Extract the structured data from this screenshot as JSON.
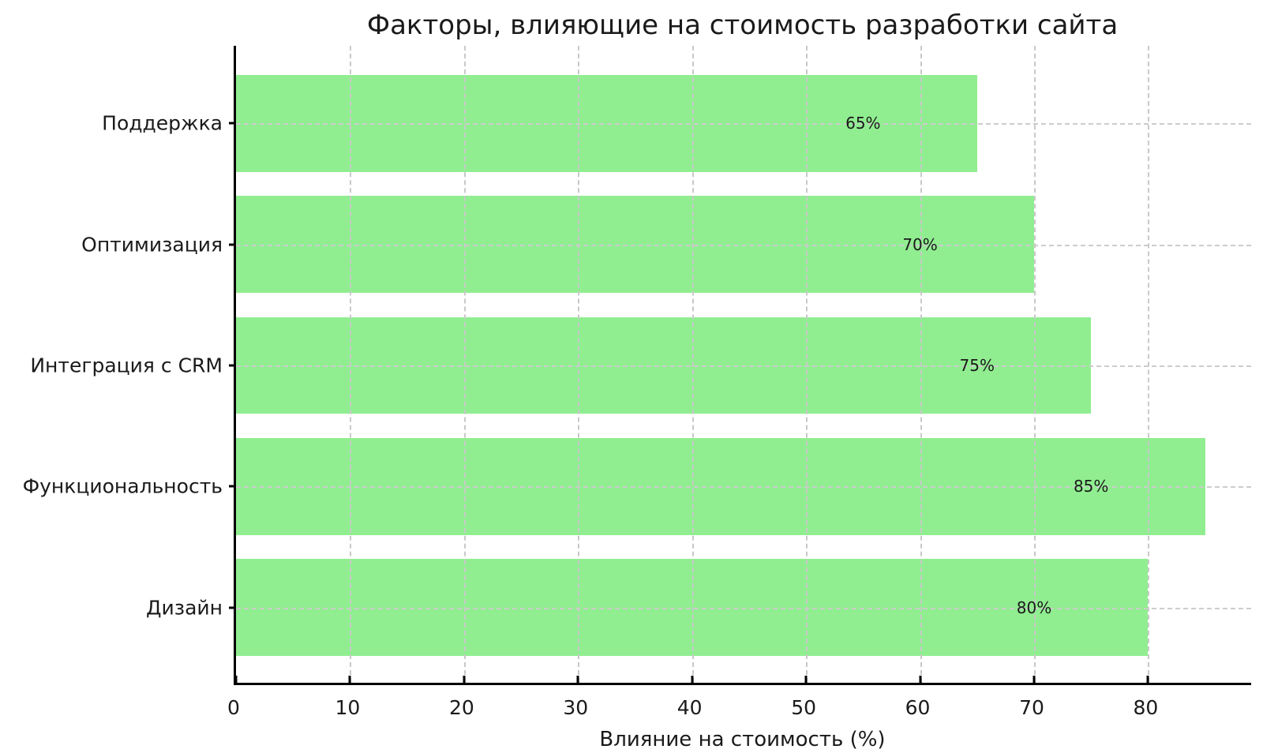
{
  "chart_data": {
    "type": "bar",
    "orientation": "horizontal",
    "title": "Факторы, влияющие на стоимость разработки сайта",
    "xlabel": "Влияние на стоимость (%)",
    "ylabel": "",
    "categories": [
      "Поддержка",
      "Оптимизация",
      "Интеграция с CRM",
      "Функциональность",
      "Дизайн"
    ],
    "values": [
      65,
      70,
      75,
      85,
      80
    ],
    "value_labels": [
      "65%",
      "70%",
      "75%",
      "85%",
      "80%"
    ],
    "x_ticks": [
      0,
      10,
      20,
      30,
      40,
      50,
      60,
      70,
      80
    ],
    "xlim": [
      0,
      89.25
    ],
    "grid": "dashed vertical and horizontal, drawn over bars",
    "legend_position": "none",
    "colors": {
      "bar": "#90EE90",
      "grid": "#c9c9c9",
      "axis": "#000000",
      "text": "#1a1a1a",
      "background": "#ffffff"
    }
  }
}
